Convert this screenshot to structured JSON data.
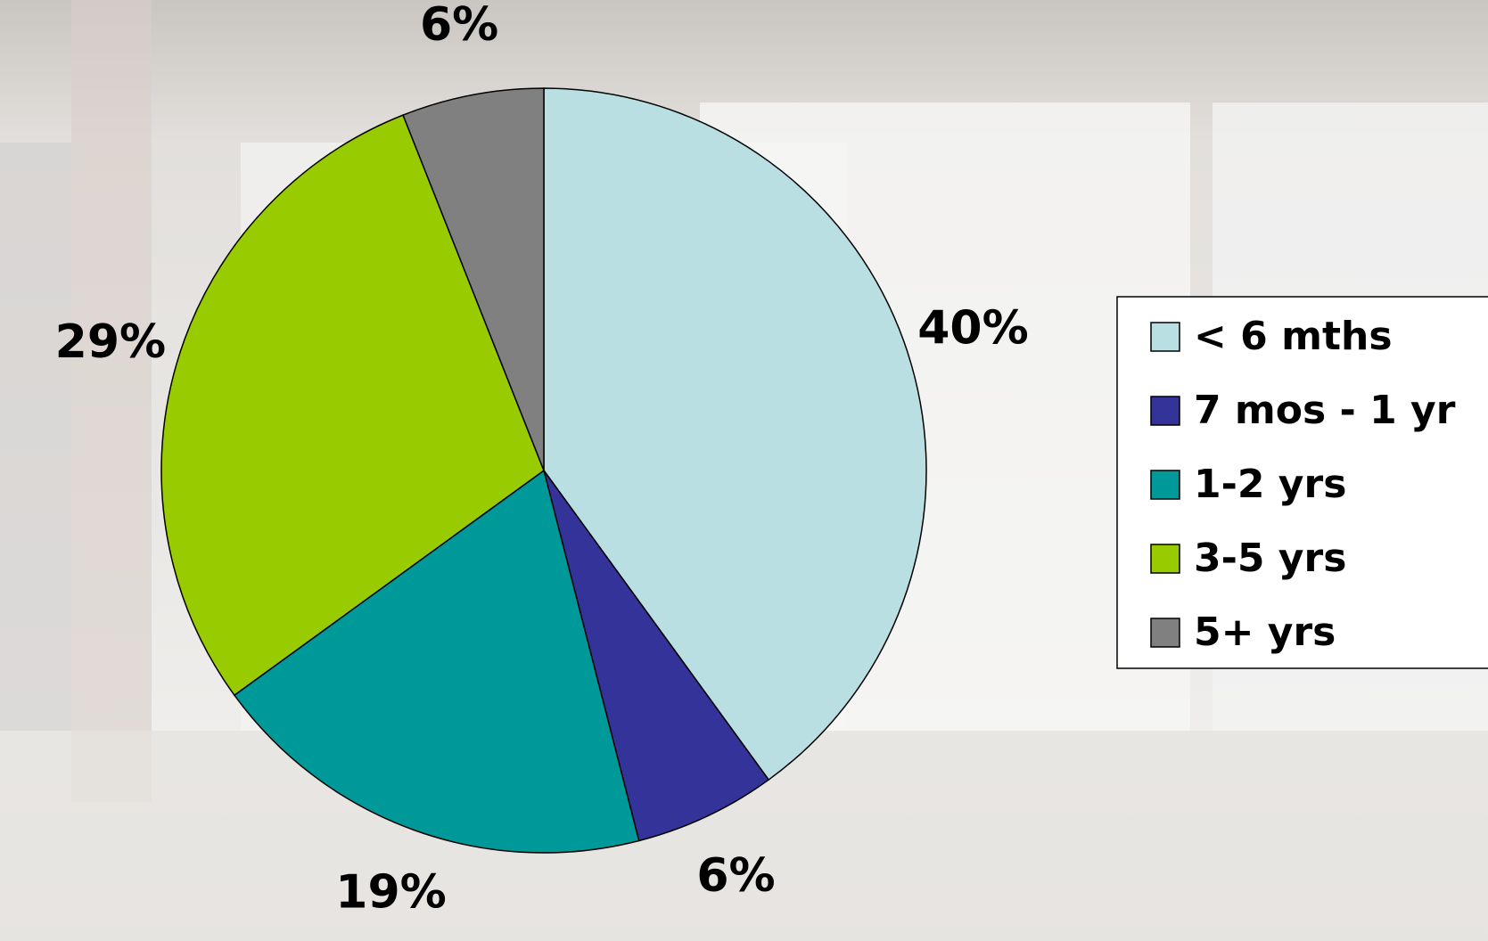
{
  "chart_data": {
    "type": "pie",
    "categories": [
      "< 6 mths",
      "7 mos - 1 yr",
      "1-2 yrs",
      "3-5 yrs",
      "5+ yrs"
    ],
    "values": [
      40,
      6,
      19,
      29,
      6
    ],
    "value_labels": [
      "40%",
      "6%",
      "19%",
      "29%",
      "6%"
    ],
    "colors": [
      "#b9dfe3",
      "#333399",
      "#009999",
      "#99cc00",
      "#808080"
    ],
    "legend": "right"
  }
}
